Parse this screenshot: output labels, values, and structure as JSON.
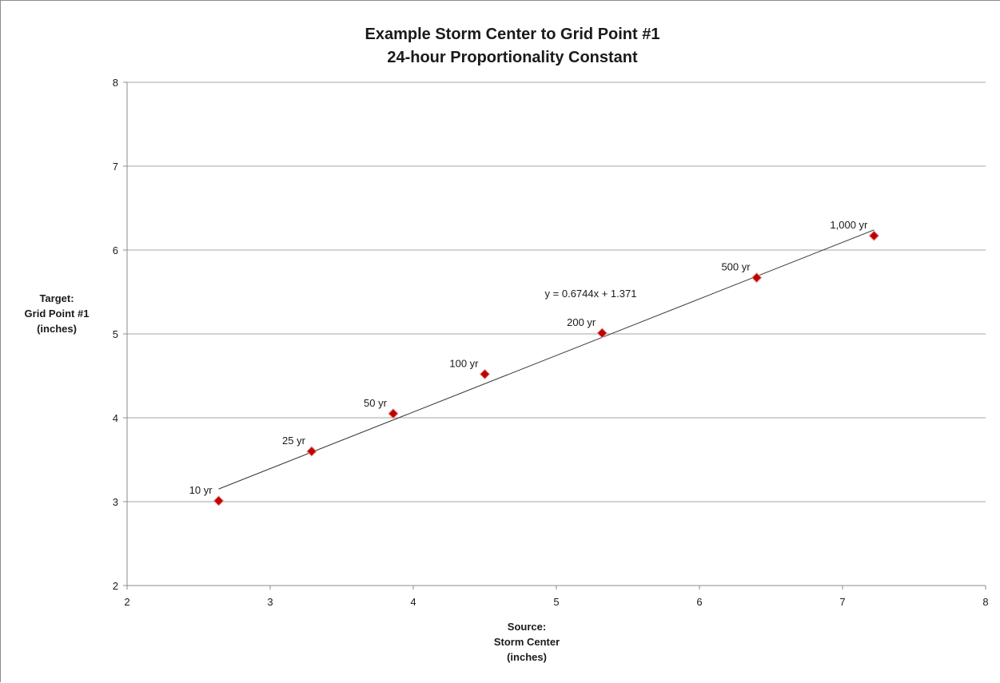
{
  "chart_data": {
    "type": "scatter",
    "title": [
      "Example Storm Center to Grid Point #1",
      "24-hour Proportionality Constant"
    ],
    "xlabel": [
      "Source:",
      "Storm Center",
      "(inches)"
    ],
    "ylabel": [
      "Target:",
      "Grid Point #1",
      "(inches)"
    ],
    "xlim": [
      2,
      8
    ],
    "ylim": [
      2,
      8
    ],
    "x_ticks": [
      2,
      3,
      4,
      5,
      6,
      7,
      8
    ],
    "y_ticks": [
      2,
      3,
      4,
      5,
      6,
      7,
      8
    ],
    "grid": {
      "horizontal": true,
      "vertical": false
    },
    "legend": "none",
    "series": [
      {
        "points": [
          {
            "label": "10 yr",
            "x": 2.64,
            "y": 3.01
          },
          {
            "label": "25 yr",
            "x": 3.29,
            "y": 3.6
          },
          {
            "label": "50 yr",
            "x": 3.86,
            "y": 4.05
          },
          {
            "label": "100 yr",
            "x": 4.5,
            "y": 4.52
          },
          {
            "label": "200 yr",
            "x": 5.32,
            "y": 5.01
          },
          {
            "label": "500 yr",
            "x": 6.4,
            "y": 5.67
          },
          {
            "label": "1,000 yr",
            "x": 7.22,
            "y": 6.17
          }
        ],
        "marker": "diamond",
        "color": "#c00000"
      }
    ],
    "trendline": {
      "type": "linear",
      "slope": 0.6744,
      "intercept": 1.371,
      "x_range": [
        2.64,
        7.22
      ],
      "equation": "y = 0.6744x + 1.371",
      "color": "#333333"
    },
    "gridline_color": "#a6a6a6"
  }
}
